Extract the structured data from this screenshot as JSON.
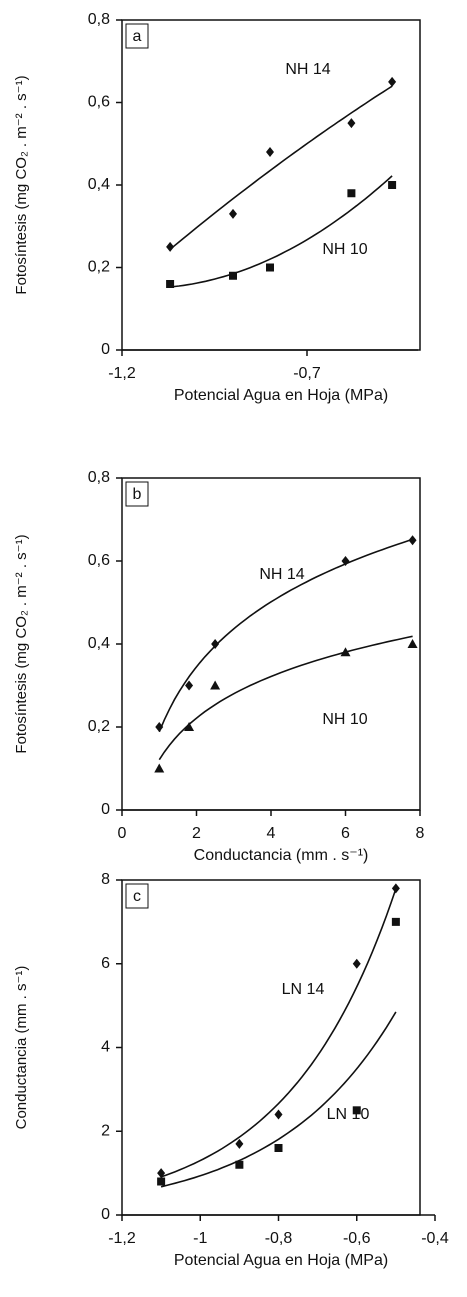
{
  "chart_data": [
    {
      "type": "scatter",
      "title": "a",
      "trendline": "poly2",
      "xlabel": "Potencial Agua en Hoja (MPa)",
      "ylabel": "Fotosíntesis (mg CO₂ . m⁻² . s⁻¹)",
      "xlim": [
        -1.2,
        -0.4
      ],
      "xticks": [
        {
          "value": -1.2,
          "label": "-1,2"
        },
        {
          "value": -0.7,
          "label": "-0,7"
        }
      ],
      "ylim": [
        0,
        0.8
      ],
      "yticks": [
        0,
        {
          "value": 0.2,
          "label": "0,2"
        },
        {
          "value": 0.4,
          "label": "0,4"
        },
        {
          "value": 0.6,
          "label": "0,6"
        },
        {
          "value": 0.8,
          "label": "0,8"
        }
      ],
      "series": [
        {
          "name": "NH 14",
          "marker": "diamond",
          "color": "#111",
          "x": [
            -1.07,
            -0.9,
            -0.8,
            -0.58,
            -0.47
          ],
          "values": [
            0.25,
            0.33,
            0.48,
            0.55,
            0.65
          ]
        },
        {
          "name": "NH 10",
          "marker": "square",
          "color": "#111",
          "x": [
            -1.07,
            -0.9,
            -0.8,
            -0.58,
            -0.47
          ],
          "values": [
            0.16,
            0.18,
            0.2,
            0.38,
            0.4
          ]
        }
      ]
    },
    {
      "type": "scatter",
      "title": "b",
      "trendline": "log",
      "xlabel": "Conductancia (mm . s⁻¹)",
      "ylabel": "Fotosíntesis (mg CO₂ . m⁻² . s⁻¹)",
      "xlim": [
        0,
        8
      ],
      "xticks": [
        0,
        2,
        4,
        6,
        8
      ],
      "ylim": [
        0,
        0.8
      ],
      "yticks": [
        0,
        {
          "value": 0.2,
          "label": "0,2"
        },
        {
          "value": 0.4,
          "label": "0,4"
        },
        {
          "value": 0.6,
          "label": "0,6"
        },
        {
          "value": 0.8,
          "label": "0,8"
        }
      ],
      "series": [
        {
          "name": "NH 14",
          "marker": "diamond",
          "color": "#111",
          "x": [
            1,
            1.8,
            2.5,
            6,
            7.8
          ],
          "values": [
            0.2,
            0.3,
            0.4,
            0.6,
            0.65
          ]
        },
        {
          "name": "NH 10",
          "marker": "triangle",
          "color": "#111",
          "x": [
            1,
            1.8,
            2.5,
            6,
            7.8
          ],
          "values": [
            0.1,
            0.2,
            0.3,
            0.38,
            0.4
          ]
        }
      ]
    },
    {
      "type": "scatter",
      "title": "c",
      "trendline": "exp",
      "xlabel": "Potencial Agua en Hoja (MPa)",
      "ylabel": "Conductancia (mm . s⁻¹)",
      "xlim": [
        -1.2,
        -0.4
      ],
      "xticks": [
        {
          "value": -1.2,
          "label": "-1,2"
        },
        -1,
        {
          "value": -0.8,
          "label": "-0,8"
        },
        {
          "value": -0.6,
          "label": "-0,6"
        },
        {
          "value": -0.4,
          "label": "-0,4"
        }
      ],
      "ylim": [
        0,
        8
      ],
      "yticks": [
        0,
        2,
        4,
        6,
        8
      ],
      "series": [
        {
          "name": "LN 14",
          "marker": "diamond",
          "color": "#111",
          "x": [
            -1.1,
            -0.9,
            -0.8,
            -0.6,
            -0.5
          ],
          "values": [
            1.0,
            1.7,
            2.4,
            6.0,
            7.8
          ]
        },
        {
          "name": "LN 10",
          "marker": "square",
          "color": "#111",
          "x": [
            -1.1,
            -0.9,
            -0.8,
            -0.6,
            -0.5
          ],
          "values": [
            0.8,
            1.2,
            1.6,
            2.5,
            7.0
          ]
        }
      ]
    }
  ]
}
